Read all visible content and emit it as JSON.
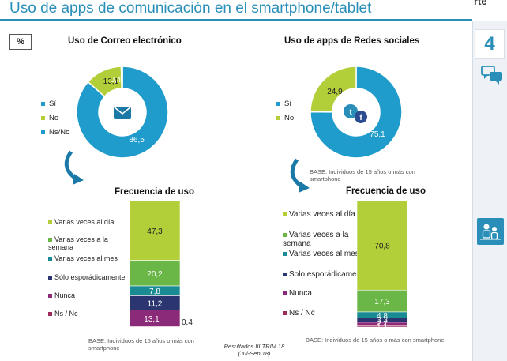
{
  "header": {
    "title": "Uso de apps de comunicación en el smartphone/tablet",
    "logo_fragment": "rte",
    "unit_box": "%"
  },
  "sidebar": {
    "number": "4",
    "chat_icon": "chat-bubbles-icon",
    "people_icon": "people-icon"
  },
  "footer": {
    "line1": "Resultados III TRIM 18",
    "line2": "(Jul-Sep 18)"
  },
  "colors": {
    "si": "#1f9ccb",
    "no": "#b2cf3a",
    "nsnc": "#1f9ccb",
    "varias_dia": "#b2cf3a",
    "varias_semana": "#6ab646",
    "varias_mes": "#1a8a93",
    "esporadica": "#2b3670",
    "nunca": "#8a2a78",
    "nsnc_bar": "#9c2a5c"
  },
  "panels": {
    "email": {
      "heading": "Uso de Correo electrónico",
      "legend": [
        "Sí",
        "No",
        "Ns/Nc"
      ],
      "freq_heading": "Frecuencia de uso",
      "base_note": "BASE: Individuos de 15 años o más con smartphone"
    },
    "social": {
      "heading": "Uso de apps de Redes sociales",
      "legend": [
        "Sí",
        "No"
      ],
      "base_note_donut": "BASE: Individuos de 15 años o más con smartphone",
      "freq_heading": "Frecuencia de uso",
      "base_note": "BASE: Individuos de 15 años o más con smartphone"
    }
  },
  "chart_data": [
    {
      "type": "pie",
      "variant": "donut",
      "title": "Uso de Correo electrónico",
      "categories": [
        "Sí",
        "No",
        "Ns/Nc"
      ],
      "values": [
        86.5,
        13.1,
        0.4
      ],
      "labels": [
        "86,5",
        "13,1",
        "0,4"
      ],
      "center_icon": "email-icon"
    },
    {
      "type": "bar",
      "variant": "stacked-100",
      "title": "Frecuencia de uso",
      "categories": [
        "Varias veces al día",
        "Varias veces a la semana",
        "Varias veces al mes",
        "Sólo esporádicamente",
        "Nunca",
        "Ns / Nc"
      ],
      "values": [
        47.3,
        20.2,
        7.8,
        11.2,
        13.1,
        0.4
      ],
      "labels": [
        "47,3",
        "20,2",
        "7,8",
        "11,2",
        "13,1",
        "0,4"
      ]
    },
    {
      "type": "pie",
      "variant": "donut",
      "title": "Uso de apps de Redes sociales",
      "categories": [
        "Sí",
        "No"
      ],
      "values": [
        75.1,
        24.9
      ],
      "labels": [
        "75,1",
        "24,9"
      ],
      "center_icon": "social-network-icon"
    },
    {
      "type": "bar",
      "variant": "stacked-100",
      "title": "Frecuencia de uso",
      "categories": [
        "Varias veces al día",
        "Varias veces a la semana",
        "Varias veces al mes",
        "Solo esporádicamente",
        "Nunca",
        "Ns / Nc"
      ],
      "values": [
        70.8,
        17.3,
        4.8,
        3.3,
        2.7,
        1.1
      ],
      "labels": [
        "70,8",
        "17,3",
        "4,8",
        "3,3",
        "2,7",
        "1,1"
      ]
    }
  ]
}
